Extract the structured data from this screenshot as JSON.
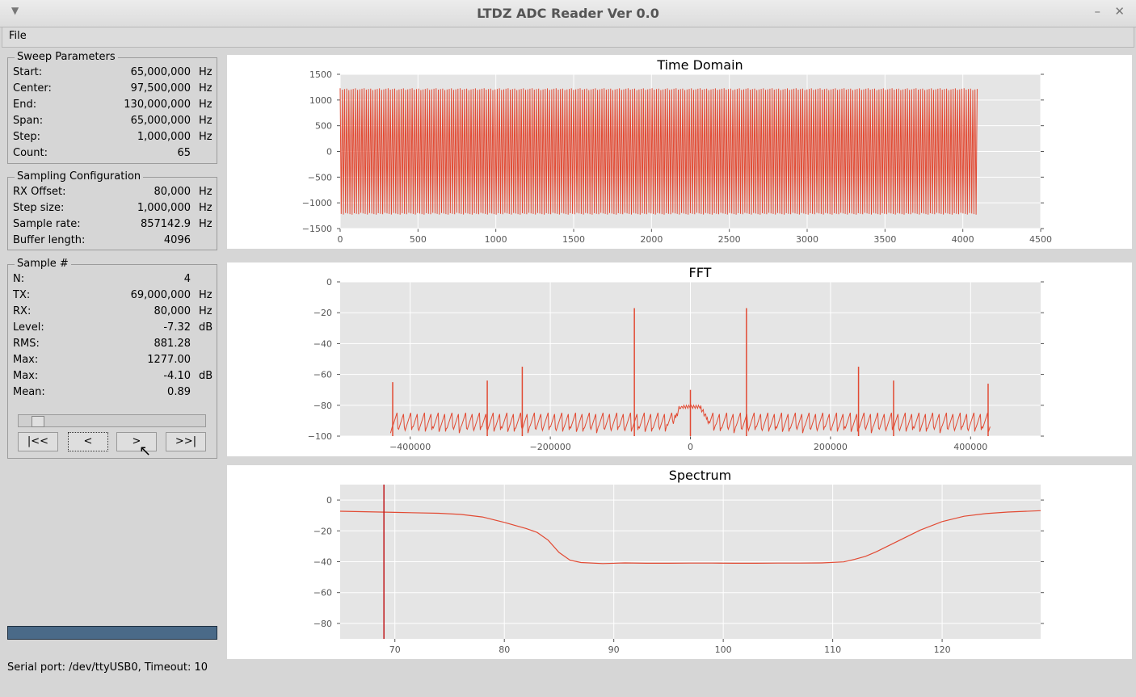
{
  "window": {
    "title": "LTDZ ADC Reader Ver 0.0"
  },
  "menu": {
    "file": "File"
  },
  "sweep": {
    "legend": "Sweep Parameters",
    "rows": [
      {
        "label": "Start:",
        "value": "65,000,000",
        "unit": "Hz"
      },
      {
        "label": "Center:",
        "value": "97,500,000",
        "unit": "Hz"
      },
      {
        "label": "End:",
        "value": "130,000,000",
        "unit": "Hz"
      },
      {
        "label": "Span:",
        "value": "65,000,000",
        "unit": "Hz"
      },
      {
        "label": "Step:",
        "value": "1,000,000",
        "unit": "Hz"
      },
      {
        "label": "Count:",
        "value": "65",
        "unit": ""
      }
    ]
  },
  "sampling": {
    "legend": "Sampling Configuration",
    "rows": [
      {
        "label": "RX Offset:",
        "value": "80,000",
        "unit": "Hz"
      },
      {
        "label": "Step size:",
        "value": "1,000,000",
        "unit": "Hz"
      },
      {
        "label": "Sample rate:",
        "value": "857142.9",
        "unit": "Hz"
      },
      {
        "label": "Buffer length:",
        "value": "4096",
        "unit": ""
      }
    ]
  },
  "sample": {
    "legend": "Sample #",
    "rows": [
      {
        "label": "N:",
        "value": "4",
        "unit": ""
      },
      {
        "label": "TX:",
        "value": "69,000,000",
        "unit": "Hz"
      },
      {
        "label": "RX:",
        "value": "80,000",
        "unit": "Hz"
      },
      {
        "label": "Level:",
        "value": "-7.32",
        "unit": "dB"
      },
      {
        "label": "RMS:",
        "value": "881.28",
        "unit": ""
      },
      {
        "label": "Max:",
        "value": "1277.00",
        "unit": ""
      },
      {
        "label": "Max:",
        "value": "-4.10",
        "unit": "dB"
      },
      {
        "label": "Mean:",
        "value": "0.89",
        "unit": ""
      }
    ],
    "slider_fraction": 0.06,
    "buttons": [
      "|<<",
      "<",
      ">",
      ">>|"
    ]
  },
  "progress_fraction": 1.0,
  "status": "Serial port: /dev/ttyUSB0, Timeout: 10",
  "colors": {
    "plot_line": "#e24a33",
    "plot_bg": "#e5e5e5",
    "progress": "#4a6a88"
  },
  "chart_data": [
    {
      "type": "line",
      "title": "Time Domain",
      "xlabel": "",
      "ylabel": "",
      "xlim": [
        0,
        4500
      ],
      "ylim": [
        -1500,
        1500
      ],
      "xticks": [
        0,
        500,
        1000,
        1500,
        2000,
        2500,
        3000,
        3500,
        4000,
        4500
      ],
      "yticks": [
        1500,
        1000,
        500,
        0,
        -500,
        -1000,
        -1500
      ],
      "series": [
        {
          "description": "oscillating ADC samples",
          "x": [
            0,
            4096
          ],
          "amplitude": 1230
        }
      ],
      "grid": true
    },
    {
      "type": "line",
      "title": "FFT",
      "xlabel": "",
      "ylabel": "",
      "xlim": [
        -500000,
        500000
      ],
      "ylim": [
        -100,
        0
      ],
      "xticks": [
        -400000,
        -200000,
        0,
        200000,
        400000
      ],
      "yticks": [
        0,
        -20,
        -40,
        -60,
        -80,
        -100
      ],
      "peaks": [
        {
          "x": -425000,
          "y": -65
        },
        {
          "x": -290000,
          "y": -64
        },
        {
          "x": -240000,
          "y": -55
        },
        {
          "x": -80000,
          "y": -17
        },
        {
          "x": 0,
          "y": -70
        },
        {
          "x": 80000,
          "y": -17
        },
        {
          "x": 240000,
          "y": -55
        },
        {
          "x": 290000,
          "y": -64
        },
        {
          "x": 425000,
          "y": -66
        }
      ],
      "noise_floor": [
        -100,
        -82
      ],
      "grid": true
    },
    {
      "type": "line",
      "title": "Spectrum",
      "xlabel": "",
      "ylabel": "",
      "xlim": [
        65,
        129
      ],
      "ylim": [
        -90,
        10
      ],
      "xticks": [
        70,
        80,
        90,
        100,
        110,
        120
      ],
      "yticks": [
        0,
        -20,
        -40,
        -60,
        -80
      ],
      "x": [
        65,
        70,
        74,
        76,
        78,
        80,
        82,
        83,
        84,
        85,
        86,
        87,
        89,
        91,
        93,
        95,
        97,
        99,
        101,
        103,
        105,
        107,
        109,
        111,
        112,
        113,
        114,
        116,
        118,
        120,
        122,
        124,
        126,
        129
      ],
      "values": [
        -7.3,
        -8,
        -8.6,
        -9.3,
        -11,
        -14.5,
        -18.5,
        -21,
        -26,
        -34,
        -39,
        -40.5,
        -41.2,
        -40.8,
        -41,
        -41,
        -40.9,
        -40.9,
        -41,
        -41,
        -40.9,
        -40.9,
        -40.8,
        -40.1,
        -38.5,
        -36.5,
        -33.5,
        -26.5,
        -19.5,
        -14,
        -10.5,
        -8.8,
        -7.8,
        -6.9
      ],
      "marker_x": 69,
      "grid": true
    }
  ]
}
